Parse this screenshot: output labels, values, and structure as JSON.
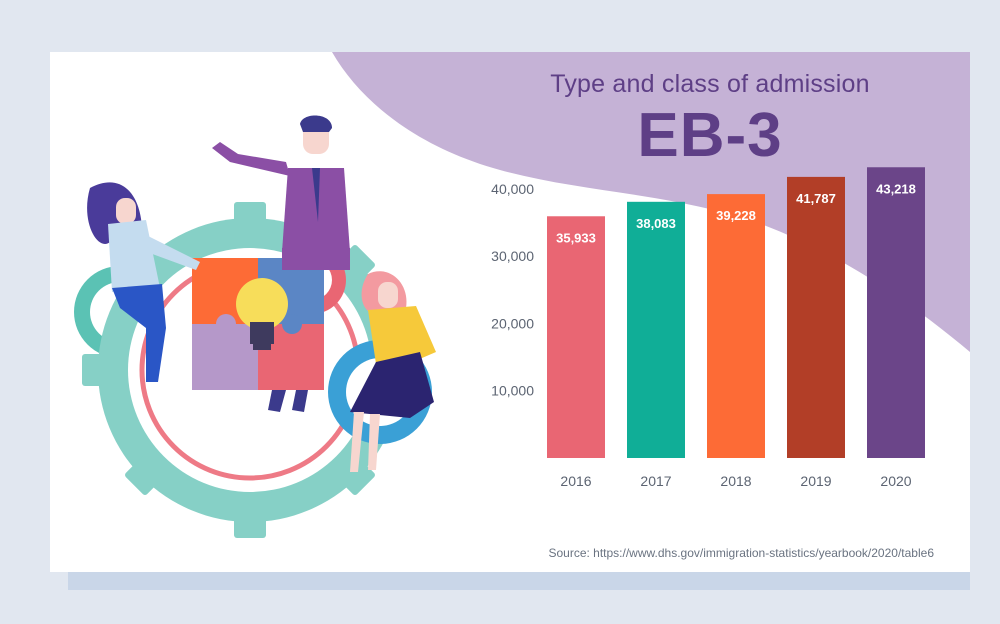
{
  "chart_data": {
    "type": "bar",
    "title": "Type and class of admission",
    "subtitle": "EB-3",
    "categories": [
      "2016",
      "2017",
      "2018",
      "2019",
      "2020"
    ],
    "values": [
      35933,
      38083,
      39228,
      41787,
      43218
    ],
    "value_labels": [
      "35,933",
      "38,083",
      "39,228",
      "41,787",
      "43,218"
    ],
    "colors": [
      "#e96673",
      "#10ae97",
      "#fd6b36",
      "#b23e27",
      "#6b4589"
    ],
    "yticks": [
      "10,000",
      "20,000",
      "30,000",
      "40,000"
    ],
    "ytick_values": [
      10000,
      20000,
      30000,
      40000
    ],
    "ylim": [
      0,
      44000
    ],
    "xlabel": "",
    "ylabel": "",
    "grid": false
  },
  "source": "Source: https://www.dhs.gov/immigration-statistics/yearbook/2020/table6"
}
